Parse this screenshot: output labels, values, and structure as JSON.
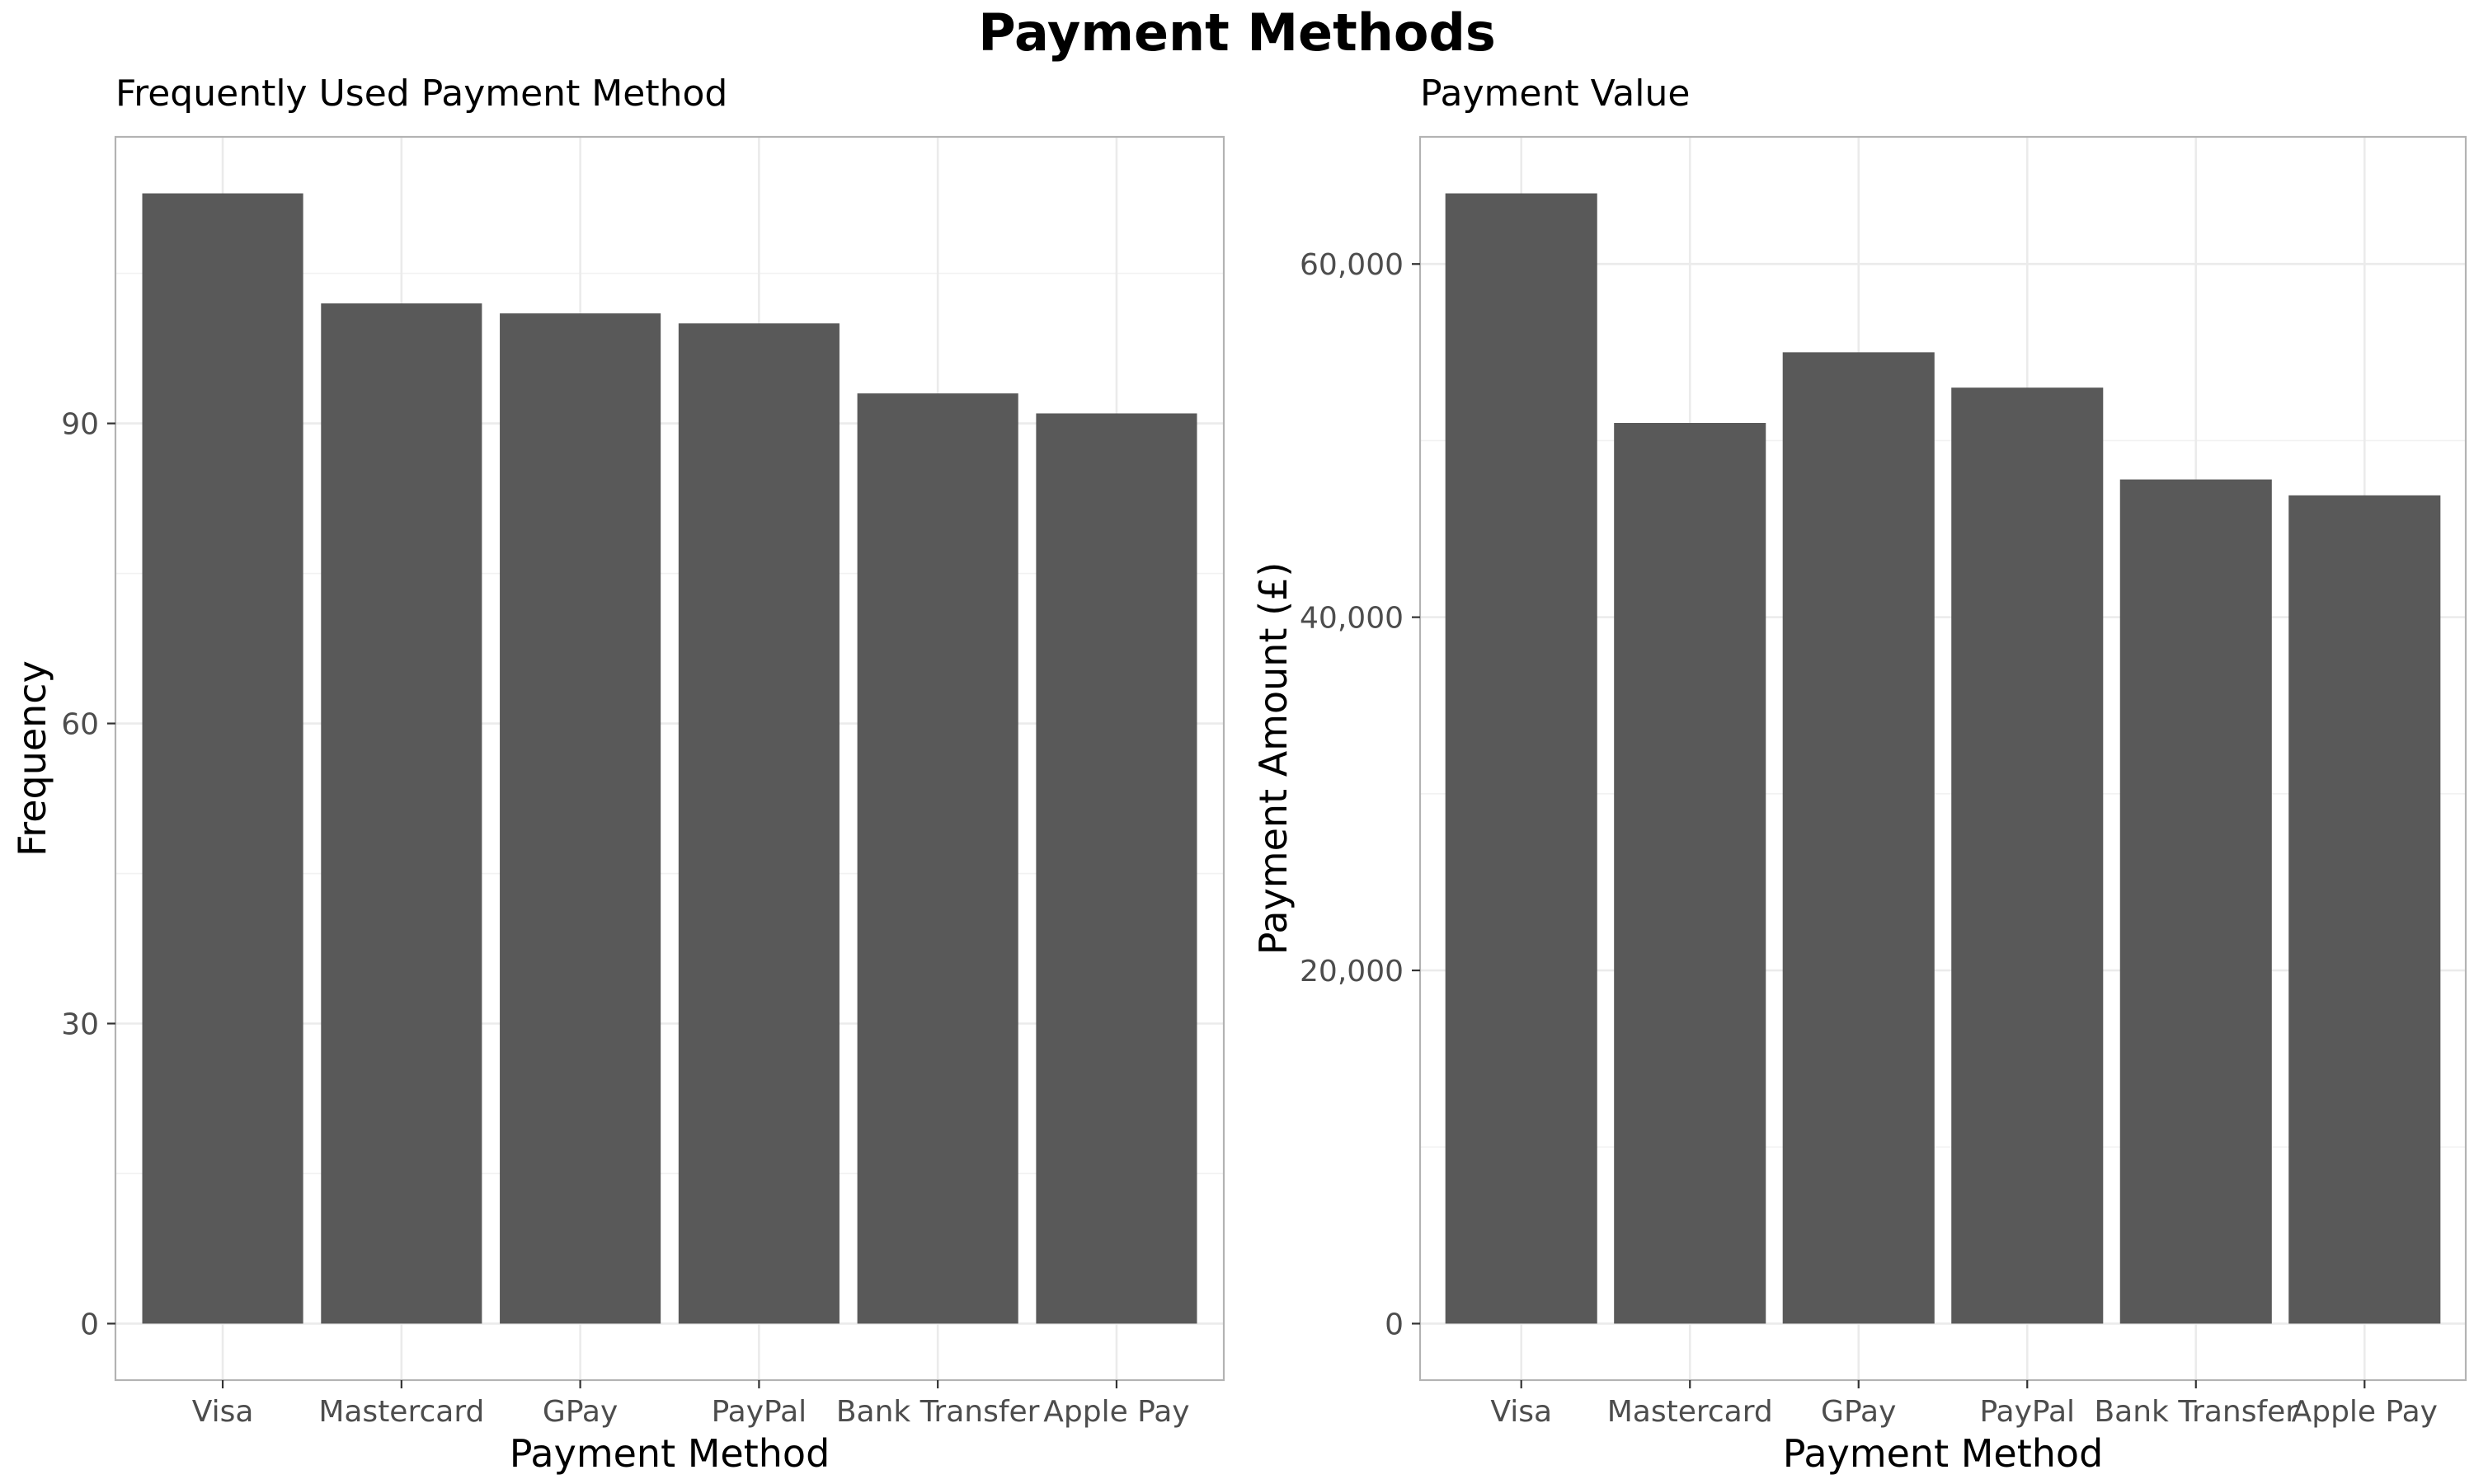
{
  "title": "Payment Methods",
  "chart_data": [
    {
      "type": "bar",
      "title": "Frequently Used Payment Method",
      "xlabel": "Payment Method",
      "ylabel": "Frequency",
      "categories": [
        "Visa",
        "Mastercard",
        "GPay",
        "PayPal",
        "Bank Transfer",
        "Apple Pay"
      ],
      "values": [
        113,
        102,
        101,
        100,
        93,
        91
      ],
      "yticks": [
        0,
        30,
        60,
        90
      ],
      "ytick_labels": [
        "0",
        "30",
        "60",
        "90"
      ],
      "ylim": [
        -5.65,
        118.65
      ],
      "grid": true,
      "bar_color": "#595959"
    },
    {
      "type": "bar",
      "title": "Payment Value",
      "xlabel": "Payment Method",
      "ylabel": "Payment Amount (£)",
      "categories": [
        "Visa",
        "Mastercard",
        "GPay",
        "PayPal",
        "Bank Transfer",
        "Apple Pay"
      ],
      "values": [
        64000,
        51000,
        55000,
        53000,
        47800,
        46900
      ],
      "yticks": [
        0,
        20000,
        40000,
        60000
      ],
      "ytick_labels": [
        "0",
        "20,000",
        "40,000",
        "60,000"
      ],
      "ylim": [
        -3200,
        67200
      ],
      "grid": true,
      "bar_color": "#595959"
    }
  ]
}
